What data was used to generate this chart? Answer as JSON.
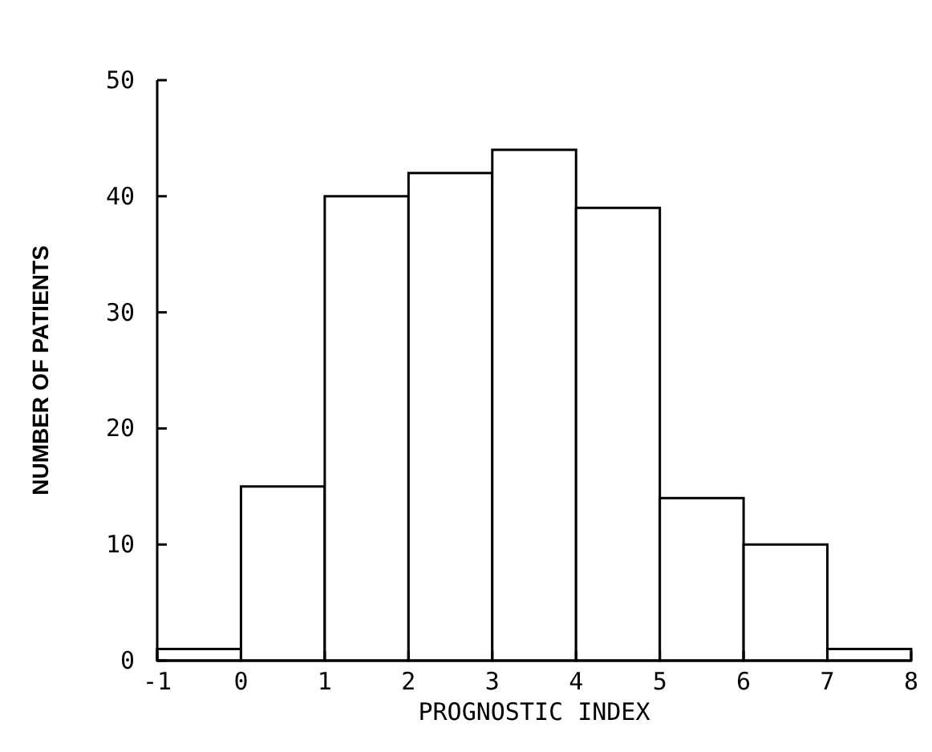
{
  "chart_data": {
    "type": "histogram",
    "xlabel": "PROGNOSTIC INDEX",
    "ylabel": "NUMBER OF PATIENTS",
    "bins": [
      -1,
      0,
      1,
      2,
      3,
      4,
      5,
      6,
      7,
      8
    ],
    "values": [
      1,
      15,
      40,
      42,
      44,
      39,
      14,
      10,
      1
    ],
    "color": "#ffffff",
    "xlim": [
      -1,
      8
    ],
    "xticks": [
      -1,
      0,
      1,
      2,
      3,
      4,
      5,
      6,
      7,
      8
    ],
    "ylim": [
      0,
      50
    ],
    "yticks": [
      0,
      10,
      20,
      30,
      40,
      50
    ],
    "grid": false
  }
}
